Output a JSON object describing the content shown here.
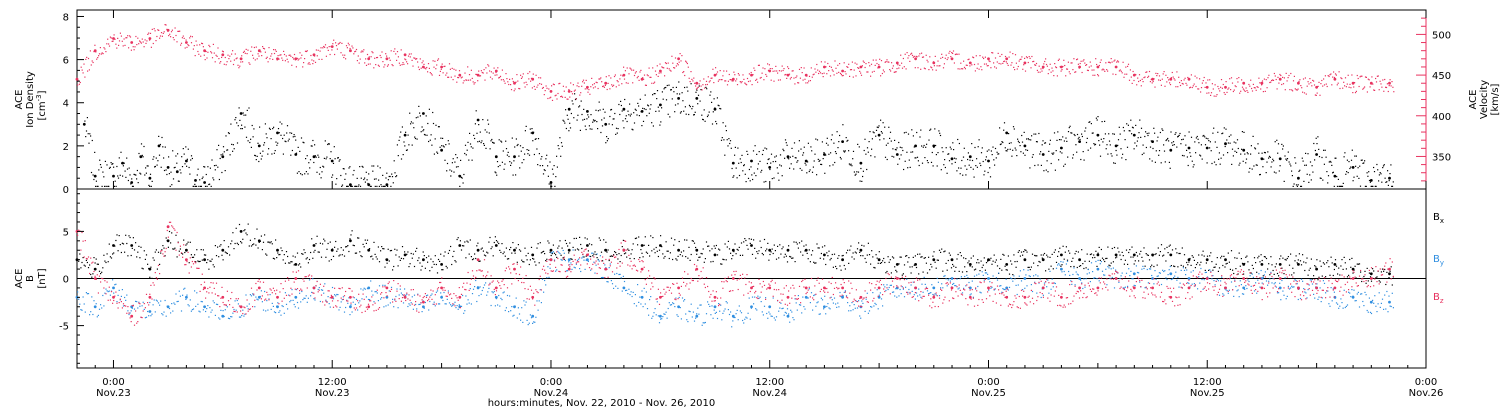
{
  "colors": {
    "black": "#000000",
    "pink": "#e8325f",
    "blue": "#2f8ee0"
  },
  "xaxis": {
    "title": "hours:minutes, Nov. 22, 2010 - Nov. 26, 2010",
    "range_hours": [
      -2,
      72
    ],
    "ticks": [
      {
        "hour": 0,
        "time": "0:00",
        "day": "Nov.23"
      },
      {
        "hour": 12,
        "time": "12:00",
        "day": "Nov.23"
      },
      {
        "hour": 24,
        "time": "0:00",
        "day": "Nov.24"
      },
      {
        "hour": 36,
        "time": "12:00",
        "day": "Nov.24"
      },
      {
        "hour": 48,
        "time": "0:00",
        "day": "Nov.25"
      },
      {
        "hour": 60,
        "time": "12:00",
        "day": "Nov.25"
      },
      {
        "hour": 72,
        "time": "0:00",
        "day": "Nov.26"
      }
    ]
  },
  "chart_data": [
    {
      "type": "scatter",
      "panel": "top",
      "left_axis": {
        "label_line1": "ACE",
        "label_line2": "Ion Density",
        "label_line3": "[cm",
        "label_sup": "-3",
        "label_close": "]",
        "ylim": [
          0,
          8.3
        ],
        "ticks": [
          "0",
          "2",
          "4",
          "6",
          "8"
        ]
      },
      "right_axis": {
        "label_line1": "ACE",
        "label_line2": "Velocity",
        "label_line3": "[km/s]",
        "ylim": [
          310,
          530
        ],
        "ticks": [
          "350",
          "400",
          "450",
          "500"
        ]
      },
      "series": [
        {
          "axis": "left",
          "color": "#000000",
          "x": [
            -1.6,
            -1,
            0,
            0.5,
            1,
            1.5,
            2,
            2.5,
            3,
            3.5,
            4,
            4.5,
            5,
            6,
            7,
            8,
            9,
            10,
            11,
            12,
            13,
            14,
            15,
            16,
            17,
            18,
            19,
            20,
            21,
            22,
            23,
            24,
            25,
            26,
            27,
            28,
            29,
            30,
            31,
            32,
            33,
            34,
            35,
            36,
            37,
            38,
            39,
            40,
            41,
            42,
            43,
            44,
            45,
            46,
            47,
            48,
            49,
            50,
            51,
            52,
            53,
            54,
            55,
            56,
            57,
            58,
            59,
            60,
            61,
            62,
            63,
            64,
            65,
            66,
            67,
            68,
            69,
            70
          ],
          "y": [
            3.0,
            0.6,
            0.6,
            1.2,
            0.3,
            1.5,
            0.5,
            2.0,
            1.0,
            0.8,
            1.3,
            0.4,
            0.3,
            1.5,
            3.5,
            2.0,
            2.6,
            1.6,
            1.5,
            1.3,
            0.2,
            0.2,
            0.2,
            2.5,
            3.5,
            1.8,
            0.6,
            3.2,
            1.5,
            1.5,
            2.6,
            0.3,
            3.7,
            3.6,
            3.0,
            3.7,
            3.6,
            3.9,
            4.2,
            4.2,
            3.7,
            1.2,
            1.3,
            1.0,
            1.5,
            1.3,
            1.6,
            2.2,
            1.2,
            2.5,
            1.6,
            2.0,
            2.0,
            1.4,
            1.5,
            1.3,
            2.6,
            2.0,
            1.6,
            1.9,
            2.2,
            2.5,
            2.0,
            2.5,
            2.2,
            1.8,
            1.9,
            1.9,
            2.1,
            1.8,
            1.4,
            1.4,
            0.5,
            1.6,
            0.6,
            1.0,
            0.4,
            0.5
          ]
        },
        {
          "axis": "right",
          "color": "#e8325f",
          "x": [
            -2,
            -1,
            0,
            1,
            2,
            3,
            4,
            5,
            6,
            7,
            8,
            9,
            10,
            11,
            12,
            13,
            14,
            15,
            16,
            17,
            18,
            19,
            20,
            21,
            22,
            23,
            24,
            25,
            26,
            27,
            28,
            29,
            30,
            31,
            32,
            33,
            34,
            35,
            36,
            37,
            38,
            39,
            40,
            41,
            42,
            43,
            44,
            45,
            46,
            47,
            48,
            49,
            50,
            51,
            52,
            53,
            54,
            55,
            56,
            57,
            58,
            59,
            60,
            61,
            62,
            63,
            64,
            65,
            66,
            67,
            68,
            69,
            70
          ],
          "y": [
            445,
            480,
            495,
            490,
            495,
            505,
            490,
            480,
            475,
            470,
            480,
            470,
            470,
            475,
            485,
            480,
            470,
            470,
            475,
            460,
            460,
            450,
            450,
            455,
            440,
            445,
            430,
            430,
            435,
            440,
            450,
            445,
            455,
            470,
            440,
            450,
            445,
            450,
            455,
            450,
            450,
            460,
            455,
            460,
            460,
            465,
            470,
            465,
            470,
            465,
            470,
            470,
            465,
            460,
            460,
            460,
            460,
            460,
            450,
            445,
            445,
            445,
            435,
            435,
            440,
            440,
            445,
            440,
            435,
            445,
            440,
            440,
            440
          ]
        }
      ]
    },
    {
      "type": "scatter",
      "panel": "bottom",
      "left_axis": {
        "label_line1": "ACE",
        "label_line2": "B",
        "label_line3": "[nT]",
        "ylim": [
          -9.5,
          9.5
        ],
        "ticks": [
          "-5",
          "0",
          "5"
        ]
      },
      "legend_position": "right",
      "series": [
        {
          "name": "B",
          "sub": "x",
          "color": "#000000",
          "x": [
            -2,
            -1,
            0,
            1,
            2,
            3,
            4,
            5,
            6,
            7,
            8,
            9,
            10,
            11,
            12,
            13,
            14,
            15,
            16,
            17,
            18,
            19,
            20,
            21,
            22,
            23,
            24,
            25,
            26,
            27,
            28,
            29,
            30,
            31,
            32,
            33,
            34,
            35,
            36,
            37,
            38,
            39,
            40,
            41,
            42,
            43,
            44,
            45,
            46,
            47,
            48,
            49,
            50,
            51,
            52,
            53,
            54,
            55,
            56,
            57,
            58,
            59,
            60,
            61,
            62,
            63,
            64,
            65,
            66,
            67,
            68,
            69,
            70
          ],
          "y": [
            2,
            1,
            3.5,
            3.5,
            1,
            4,
            3,
            2,
            3,
            5,
            4,
            3,
            1.5,
            3.5,
            3,
            4,
            3,
            2,
            2.5,
            2,
            1.5,
            3.5,
            3,
            3.5,
            3,
            2.5,
            3,
            3,
            3.5,
            3,
            3,
            3.5,
            3.5,
            3,
            3,
            2.5,
            3,
            3.5,
            3,
            3,
            3,
            2.5,
            2,
            3,
            2,
            1.5,
            1.5,
            2,
            2,
            1.5,
            2,
            1.5,
            2,
            2,
            2.5,
            2,
            2.5,
            2.5,
            2.5,
            2.5,
            2.5,
            2,
            2,
            2,
            1.5,
            1.5,
            1.5,
            1.5,
            1,
            1.5,
            1,
            0.5,
            0.5
          ]
        },
        {
          "name": "B",
          "sub": "y",
          "color": "#2f8ee0",
          "x": [
            -2,
            -1,
            0,
            1,
            2,
            3,
            4,
            5,
            6,
            7,
            8,
            9,
            10,
            11,
            12,
            13,
            14,
            15,
            16,
            17,
            18,
            19,
            20,
            21,
            22,
            23,
            24,
            25,
            26,
            27,
            28,
            29,
            30,
            31,
            32,
            33,
            34,
            35,
            36,
            37,
            38,
            39,
            40,
            41,
            42,
            43,
            44,
            45,
            46,
            47,
            48,
            49,
            50,
            51,
            52,
            53,
            54,
            55,
            56,
            57,
            58,
            59,
            60,
            61,
            62,
            63,
            64,
            65,
            66,
            67,
            68,
            69,
            70
          ],
          "y": [
            -2,
            -3,
            -1,
            -3,
            -3.5,
            -3,
            -2,
            -3,
            -4,
            -3,
            -2,
            -3,
            -2,
            -1,
            -2,
            -3,
            -1,
            -2,
            -2,
            -3,
            -2,
            -3,
            -1,
            -2,
            -3,
            -4,
            2,
            2,
            2,
            1,
            -1,
            -2,
            -4,
            -3,
            -4,
            -3,
            -4,
            -3,
            -3,
            -4,
            -2,
            -3,
            -2,
            -3,
            -2,
            -1,
            -1,
            -1,
            0,
            -1,
            0,
            -1,
            0,
            -1,
            1,
            0,
            1,
            0,
            0.5,
            0,
            0.5,
            0,
            0,
            -1,
            -1,
            0,
            -1,
            -1,
            -1,
            -2,
            -2,
            -2.5,
            -2.5
          ]
        },
        {
          "name": "B",
          "sub": "z",
          "color": "#e8325f",
          "x": [
            -2,
            -1,
            0,
            1,
            2,
            3,
            4,
            5,
            6,
            7,
            8,
            9,
            10,
            11,
            12,
            13,
            14,
            15,
            16,
            17,
            18,
            19,
            20,
            21,
            22,
            23,
            24,
            25,
            26,
            27,
            28,
            29,
            30,
            31,
            32,
            33,
            34,
            35,
            36,
            37,
            38,
            39,
            40,
            41,
            42,
            43,
            44,
            45,
            46,
            47,
            48,
            49,
            50,
            51,
            52,
            53,
            54,
            55,
            56,
            57,
            58,
            59,
            60,
            61,
            62,
            63,
            64,
            65,
            66,
            67,
            68,
            69,
            70
          ],
          "y": [
            5,
            0,
            -2,
            -4,
            -2,
            5.5,
            2,
            -1,
            -2,
            -3,
            -1,
            -2,
            0,
            -1,
            -2,
            -2,
            -3,
            -1,
            -2,
            -2.5,
            -1,
            -2,
            2,
            -1,
            1,
            -2,
            2,
            1,
            2.5,
            1,
            3,
            1,
            -2,
            -1,
            1,
            -2,
            0,
            -1,
            -1,
            -2,
            -1,
            -1,
            -1,
            -2,
            -1,
            0,
            -1,
            -2,
            -1,
            -2,
            -1,
            -2,
            -2,
            -1,
            -2,
            -1,
            -1,
            0,
            -1,
            -1,
            -2,
            -1,
            0,
            -1,
            0,
            -1,
            0,
            -1,
            -1,
            -1,
            0,
            0,
            1
          ]
        }
      ]
    }
  ]
}
